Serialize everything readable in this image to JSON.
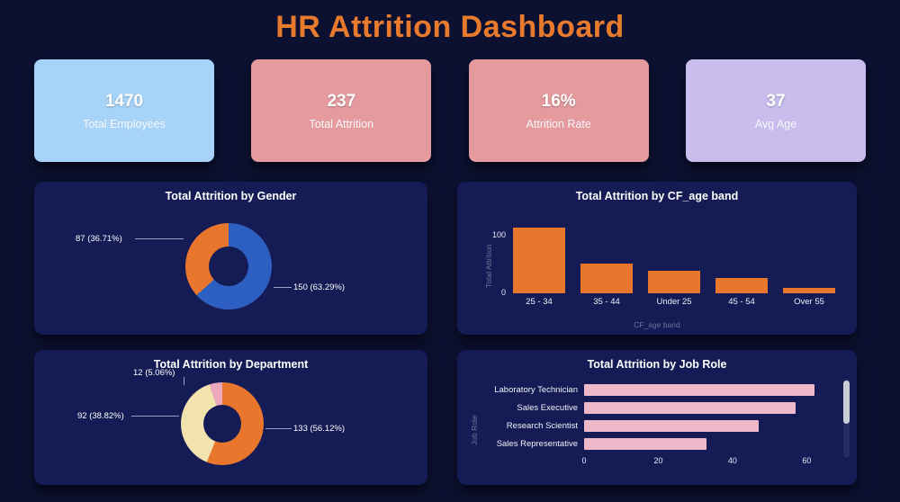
{
  "title": "HR Attrition Dashboard",
  "theme": {
    "background": "#0c1132",
    "panel": "#141b55",
    "title_color": "#e87a2e"
  },
  "kpis": [
    {
      "value": "1470",
      "label": "Total Employees",
      "color": "#a6d3f7"
    },
    {
      "value": "237",
      "label": "Total Attrition",
      "color": "#e59a9e"
    },
    {
      "value": "16%",
      "label": "Attrition Rate",
      "color": "#e59a9e"
    },
    {
      "value": "37",
      "label": "Avg Age",
      "color": "#c8bdec"
    }
  ],
  "chart_data": [
    {
      "type": "donut",
      "title": "Total Attrition by Gender",
      "total": 237,
      "slices": [
        {
          "label": "150 (63.29%)",
          "value": 150,
          "pct": 63.29,
          "color": "#2d5fc2"
        },
        {
          "label": "87 (36.71%)",
          "value": 87,
          "pct": 36.71,
          "color": "#e8772d"
        }
      ]
    },
    {
      "type": "bar",
      "title": "Total Attrition by CF_age band",
      "categories": [
        "25 - 34",
        "35 - 44",
        "Under 25",
        "45 - 54",
        "Over 55"
      ],
      "values": [
        112,
        51,
        38,
        26,
        10
      ],
      "ymax": 120,
      "yticks": [
        100,
        0
      ],
      "xlabel": "CF_age band",
      "ylabel": "Total Attrition",
      "bar_color": "#e8772d"
    },
    {
      "type": "donut",
      "title": "Total Attrition by Department",
      "total": 237,
      "slices": [
        {
          "label": "133 (56.12%)",
          "value": 133,
          "pct": 56.12,
          "color": "#e8772d"
        },
        {
          "label": "92 (38.82%)",
          "value": 92,
          "pct": 38.82,
          "color": "#f2e3ae"
        },
        {
          "label": "12 (5.06%)",
          "value": 12,
          "pct": 5.06,
          "color": "#eba8bd"
        }
      ]
    },
    {
      "type": "hbar",
      "title": "Total Attrition by Job Role",
      "categories": [
        "Laboratory Technician",
        "Sales Executive",
        "Research Scientist",
        "Sales Representative"
      ],
      "values": [
        62,
        57,
        47,
        33
      ],
      "xmax": 65,
      "xticks": [
        0,
        20,
        40,
        60
      ],
      "ylabel": "Job Role",
      "bar_color": "#f0b9c9"
    }
  ]
}
